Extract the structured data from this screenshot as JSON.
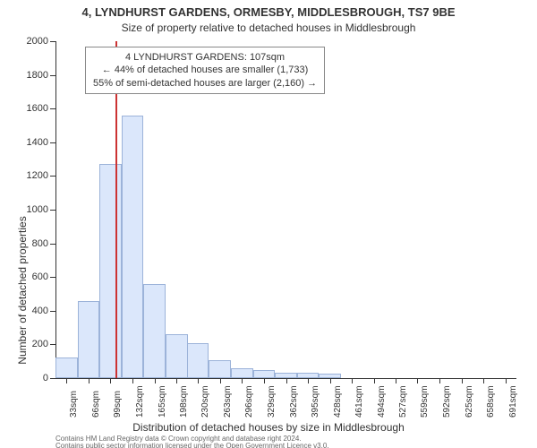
{
  "title": "4, LYNDHURST GARDENS, ORMESBY, MIDDLESBROUGH, TS7 9BE",
  "subtitle": "Size of property relative to detached houses in Middlesbrough",
  "chart": {
    "type": "histogram",
    "background_color": "#ffffff",
    "bar_fill": "#dbe7fb",
    "bar_border": "#9cb3d9",
    "axis_color": "#333333",
    "marker_color": "#cc3333",
    "ylim": [
      0,
      2000
    ],
    "ytick_step": 200,
    "yticks": [
      0,
      200,
      400,
      600,
      800,
      1000,
      1200,
      1400,
      1600,
      1800,
      2000
    ],
    "ylabel": "Number of detached properties",
    "xlabel": "Distribution of detached houses by size in Middlesbrough",
    "xlim": [
      16.5,
      707.5
    ],
    "bin_width": 33,
    "bin_centers": [
      33,
      66,
      99,
      132,
      165,
      198,
      230,
      263,
      296,
      329,
      362,
      395,
      428,
      461,
      494,
      527,
      559,
      592,
      625,
      658,
      691
    ],
    "bin_labels": [
      "33sqm",
      "66sqm",
      "99sqm",
      "132sqm",
      "165sqm",
      "198sqm",
      "230sqm",
      "263sqm",
      "296sqm",
      "329sqm",
      "362sqm",
      "395sqm",
      "428sqm",
      "461sqm",
      "494sqm",
      "527sqm",
      "559sqm",
      "592sqm",
      "625sqm",
      "658sqm",
      "691sqm"
    ],
    "values": [
      120,
      460,
      1270,
      1560,
      560,
      260,
      210,
      105,
      60,
      50,
      30,
      30,
      25,
      0,
      0,
      0,
      0,
      0,
      0,
      0,
      0
    ],
    "marker_x": 107,
    "title_fontsize": 13,
    "subtitle_fontsize": 12,
    "label_fontsize": 12,
    "tick_fontsize": 11,
    "xtick_fontsize": 10
  },
  "annotation": {
    "line1": "4 LYNDHURST GARDENS: 107sqm",
    "line2": "← 44% of detached houses are smaller (1,733)",
    "line3": "55% of semi-detached houses are larger (2,160) →",
    "border_color": "#888888",
    "background_color": "#ffffff",
    "fontsize": 11
  },
  "attribution": {
    "line1": "Contains HM Land Registry data © Crown copyright and database right 2024.",
    "line2": "Contains public sector information licensed under the Open Government Licence v3.0."
  }
}
